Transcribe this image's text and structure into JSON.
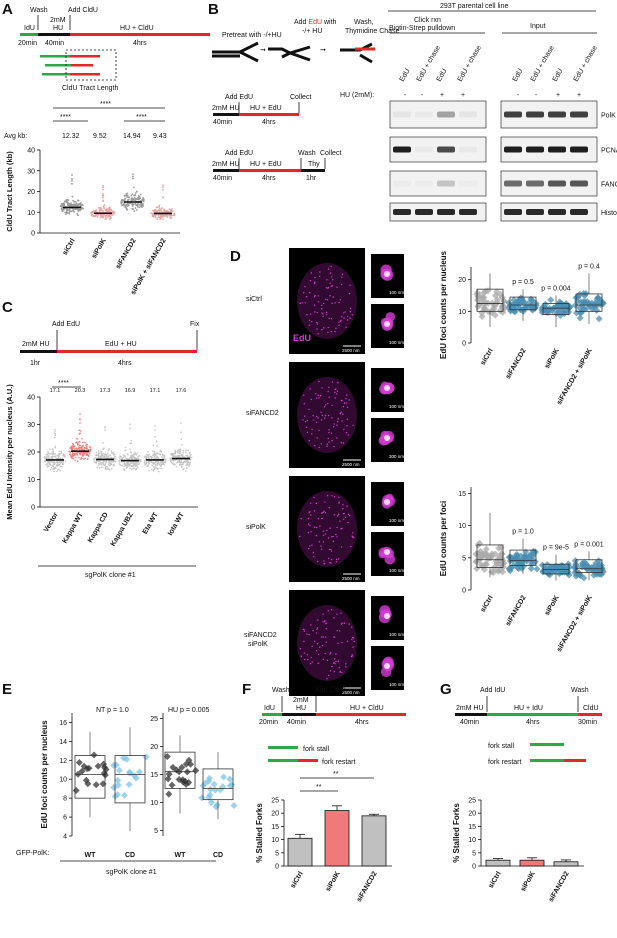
{
  "colors": {
    "green": "#2aa84a",
    "red": "#e02a2a",
    "black": "#111111",
    "grey": "#b9b9b9",
    "pink": "#e7a3a3",
    "blue": "#4a8db3",
    "lightblue": "#7fc4e6",
    "magenta": "#d63cd6",
    "salmon": "#f07a7a"
  },
  "panels": {
    "a": {
      "letter": "A",
      "idu": "IdU",
      "wash": "Wash",
      "hu_top": "2mM",
      "hu_bot": "HU",
      "add_cldu": "Add CldU",
      "hu_cldu": "HU + CldU",
      "t20": "20min",
      "t40": "40min",
      "t4": "4hrs",
      "tract": "CldU Tract Length",
      "avg_label": "Avg kb:",
      "sig": "****"
    },
    "b": {
      "letter": "B",
      "pretreat": "Pretreat with -/+HU",
      "add_edu_pre": "Add ",
      "edu_word": "EdU",
      "add_edu_post": " with",
      "minus_plus_hu": "-/+ HU",
      "wash_thy": "Wash,",
      "thy_chase": "Thymidine Chase",
      "add_edu": "Add EdU",
      "collect": "Collect",
      "hu2mm": "2mM HU",
      "hu_edu": "HU + EdU",
      "t40": "40min",
      "t4": "4hrs",
      "wash": "Wash",
      "thy": "Thy",
      "t1": "1hr",
      "cell_line": "293T parental cell line",
      "click_rxn": "Click rxn",
      "pulldown": "Biotin-Strep pulldown",
      "input": "Input",
      "hu_label": "HU (2mM):",
      "lane_labels": [
        "EdU",
        "EdU + chase",
        "EdU",
        "EdU + chase"
      ],
      "hu_signs": [
        "-",
        "-",
        "+",
        "+"
      ],
      "blots": [
        "PolK",
        "PCNA",
        "FANCD2",
        "Histone H3"
      ]
    },
    "c": {
      "letter": "C",
      "add_edu": "Add EdU",
      "fix": "Fix",
      "hu2mm": "2mM HU",
      "edu_hu": "EdU + HU",
      "t1": "1hr",
      "t4": "4hrs",
      "sig": "****",
      "clone": "sgPolK clone #1"
    },
    "d": {
      "letter": "D",
      "edu": "EdU",
      "scale_big": "2500 nm",
      "scale_small": "100 nm",
      "scale_300": "300 nm",
      "conditions": [
        "siCtrl",
        "siFANCD2",
        "siPolK",
        "siFANCD2"
      ],
      "cond4_line2": "siPolK"
    },
    "e": {
      "letter": "E",
      "nt": "NT",
      "hu": "HU",
      "gfp_label": "GFP-PolK:",
      "clone": "sgPolK clone #1"
    },
    "f": {
      "letter": "F",
      "wash": "Wash",
      "hu_top": "2mM",
      "hu_bot": "HU",
      "add_cldu": "Add CldU",
      "idu": "IdU",
      "hu_cldu": "HU + CldU",
      "t20": "20min",
      "t40": "40min",
      "t4": "4hrs",
      "stall": "fork stall",
      "restart": "fork restart",
      "sig": "**"
    },
    "g": {
      "letter": "G",
      "add_idu": "Add IdU",
      "wash": "Wash",
      "hu2mm": "2mM HU",
      "hu_idu": "HU + IdU",
      "cldu": "CldU",
      "t40": "40min",
      "t4": "4hrs",
      "t30": "30min",
      "stall": "fork stall",
      "restart": "fork restart"
    }
  },
  "chart_data": [
    {
      "type": "scatter",
      "panel": "A",
      "ylabel": "CldU Tract Length (kb)",
      "categories": [
        "siCtrl",
        "siPolK",
        "siFANCD2",
        "siPolK + siFANCD2"
      ],
      "avg_kb": [
        "12.32",
        "9.52",
        "14.94",
        "9.43"
      ],
      "means": [
        12.32,
        9.52,
        14.94,
        9.43
      ],
      "yticks": [
        0,
        10,
        20,
        30,
        40
      ],
      "ylim": [
        0,
        40
      ]
    },
    {
      "type": "scatter",
      "panel": "C",
      "ylabel": "Mean EdU Intensity per nucleus (A.U.)",
      "categories": [
        "Vector",
        "Kappa WT",
        "Kappa CD",
        "Kappa UBZ",
        "Eta WT",
        "Iota WT"
      ],
      "medians_label": [
        "17.1",
        "20.3",
        "17.3",
        "16.9",
        "17.1",
        "17.6"
      ],
      "means": [
        17.1,
        20.3,
        17.3,
        16.9,
        17.1,
        17.6
      ],
      "yticks": [
        0,
        10,
        20,
        30,
        40
      ],
      "ylim": [
        0,
        40
      ]
    },
    {
      "type": "box",
      "panel": "D-top",
      "ylabel": "EdU foci counts per nucleus",
      "categories": [
        "siCtrl",
        "siFANCD2",
        "siPolK",
        "siFANCD2 + siPolK"
      ],
      "pvalues": [
        "",
        "p = 0.5",
        "p = 0.004",
        "p = 0.4"
      ],
      "boxes": [
        [
          5,
          10,
          12.5,
          17,
          22
        ],
        [
          7,
          10.5,
          12,
          14.5,
          17
        ],
        [
          5,
          9,
          11,
          12.5,
          15
        ],
        [
          6,
          10,
          12,
          15.5,
          22
        ]
      ],
      "yticks": [
        0,
        10,
        20
      ],
      "ylim": [
        0,
        24
      ]
    },
    {
      "type": "box",
      "panel": "D-bottom",
      "ylabel": "EdU counts per foci",
      "categories": [
        "siCtrl",
        "siFANCD2",
        "siPolK",
        "siFANCD2 + siPolK"
      ],
      "pvalues": [
        "",
        "p = 1.0",
        "p = 9e-5",
        "p = 0.001"
      ],
      "boxes": [
        [
          2,
          3.5,
          4.7,
          7,
          12
        ],
        [
          2.5,
          3.8,
          4.6,
          6.2,
          8
        ],
        [
          1.5,
          2.5,
          3.2,
          4,
          5.5
        ],
        [
          1.5,
          2.7,
          3.3,
          4.7,
          6
        ]
      ],
      "yticks": [
        0,
        5,
        10,
        15
      ],
      "ylim": [
        0,
        16
      ]
    },
    {
      "type": "box",
      "panel": "E-NT",
      "title": "NT p = 1.0",
      "ylabel": "EdU foci counts per nucleus",
      "categories": [
        "WT",
        "CD"
      ],
      "boxes": [
        [
          6,
          8,
          10.5,
          12.5,
          15
        ],
        [
          4.5,
          7.5,
          10.5,
          12.5,
          15.5
        ]
      ],
      "yticks": [
        4,
        6,
        8,
        10,
        12,
        14,
        16
      ],
      "ylim": [
        4,
        17
      ]
    },
    {
      "type": "box",
      "panel": "E-HU",
      "title": "HU p = 0.005",
      "categories": [
        "WT",
        "CD"
      ],
      "boxes": [
        [
          8,
          12.5,
          15.5,
          19,
          22
        ],
        [
          7,
          10.5,
          12.5,
          16,
          19
        ]
      ],
      "yticks": [
        5,
        10,
        15,
        20,
        25
      ],
      "ylim": [
        4,
        26
      ]
    },
    {
      "type": "bar",
      "panel": "F",
      "ylabel": "% Stalled Forks",
      "categories": [
        "siCtrl",
        "siPolK",
        "siFANCD2"
      ],
      "values": [
        10.5,
        21,
        19
      ],
      "errors": [
        1.5,
        1.8,
        0.6
      ],
      "yticks": [
        0,
        5,
        10,
        15,
        20,
        25
      ],
      "ylim": [
        0,
        25
      ]
    },
    {
      "type": "bar",
      "panel": "G",
      "ylabel": "% Stalled Forks",
      "categories": [
        "siCtrl",
        "siPolK",
        "siFANCD2"
      ],
      "values": [
        2.2,
        2.2,
        1.6
      ],
      "errors": [
        0.6,
        0.9,
        0.7
      ],
      "yticks": [
        0,
        5,
        10,
        15,
        20,
        25
      ],
      "ylim": [
        0,
        25
      ]
    }
  ]
}
